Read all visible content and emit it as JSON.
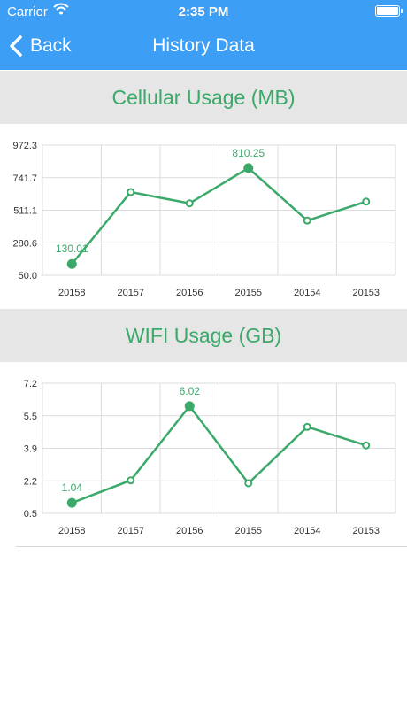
{
  "status_bar": {
    "carrier": "Carrier",
    "time": "2:35 PM"
  },
  "nav": {
    "back_label": "Back",
    "title": "History Data"
  },
  "colors": {
    "nav_bg": "#3d9ef6",
    "accent_green": "#3ba96a",
    "section_bg": "#e6e6e6"
  },
  "icons": {
    "back": "chevron-left-icon",
    "wifi": "wifi-icon",
    "battery": "battery-icon"
  },
  "sections": [
    {
      "title": "Cellular Usage (MB)"
    },
    {
      "title": "WIFI Usage (GB)"
    }
  ],
  "chart_data": [
    {
      "type": "line",
      "categories": [
        "20158",
        "20157",
        "20156",
        "20155",
        "20154",
        "20153"
      ],
      "values": [
        130.01,
        640,
        560,
        810.25,
        438,
        572
      ],
      "ylim": [
        50.0,
        972.3
      ],
      "yticks": [
        "972.3",
        "741.7",
        "511.1",
        "280.6",
        "50.0"
      ],
      "highlighted": [
        0,
        3
      ],
      "labels": [
        "130.01",
        "",
        "",
        "810.25",
        "",
        ""
      ],
      "grid": true
    },
    {
      "type": "line",
      "categories": [
        "20158",
        "20157",
        "20156",
        "20155",
        "20154",
        "20153"
      ],
      "values": [
        1.04,
        2.2,
        6.02,
        2.05,
        4.95,
        4.0
      ],
      "ylim": [
        0.5,
        7.2
      ],
      "yticks": [
        "7.2",
        "5.5",
        "3.9",
        "2.2",
        "0.5"
      ],
      "highlighted": [
        0,
        2
      ],
      "labels": [
        "1.04",
        "",
        "6.02",
        "",
        "",
        ""
      ],
      "grid": true
    }
  ]
}
